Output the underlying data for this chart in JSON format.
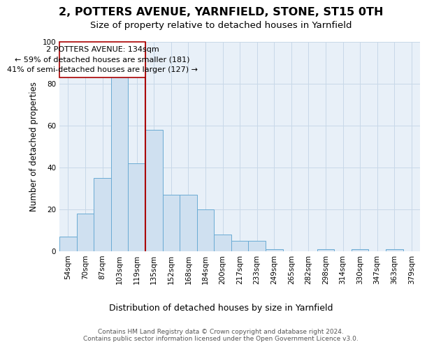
{
  "title": "2, POTTERS AVENUE, YARNFIELD, STONE, ST15 0TH",
  "subtitle": "Size of property relative to detached houses in Yarnfield",
  "xlabel": "Distribution of detached houses by size in Yarnfield",
  "ylabel": "Number of detached properties",
  "bar_color": "#cfe0f0",
  "bar_edge_color": "#6aabd4",
  "grid_color": "#c8d8e8",
  "background_color": "#ffffff",
  "plot_bg_color": "#e8f0f8",
  "annotation_line_color": "#aa0000",
  "annotation_box_color": "#ffffff",
  "annotation_box_edge": "#aa0000",
  "categories": [
    "54sqm",
    "70sqm",
    "87sqm",
    "103sqm",
    "119sqm",
    "135sqm",
    "152sqm",
    "168sqm",
    "184sqm",
    "200sqm",
    "217sqm",
    "233sqm",
    "249sqm",
    "265sqm",
    "282sqm",
    "298sqm",
    "314sqm",
    "330sqm",
    "347sqm",
    "363sqm",
    "379sqm"
  ],
  "values": [
    7,
    18,
    35,
    84,
    42,
    58,
    27,
    27,
    20,
    8,
    5,
    5,
    1,
    0,
    0,
    1,
    0,
    1,
    0,
    1,
    0
  ],
  "ylim": [
    0,
    100
  ],
  "yticks": [
    0,
    20,
    40,
    60,
    80,
    100
  ],
  "property_line_idx": 5,
  "annotation_line1": "2 POTTERS AVENUE: 134sqm",
  "annotation_line2": "← 59% of detached houses are smaller (181)",
  "annotation_line3": "41% of semi-detached houses are larger (127) →",
  "footer_text": "Contains HM Land Registry data © Crown copyright and database right 2024.\nContains public sector information licensed under the Open Government Licence v3.0.",
  "title_fontsize": 11.5,
  "subtitle_fontsize": 9.5,
  "xlabel_fontsize": 9,
  "ylabel_fontsize": 8.5,
  "tick_fontsize": 7.5,
  "annotation_fontsize": 8,
  "footer_fontsize": 6.5
}
